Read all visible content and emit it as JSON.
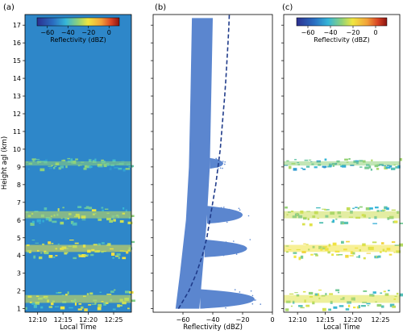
{
  "chart_data": [
    {
      "panel": "(a)",
      "type": "heatmap",
      "xlabel": "Local Time",
      "ylabel": "Height agl (km)",
      "x_ticks": [
        "12:10",
        "12:15",
        "12:20",
        "12:25"
      ],
      "x_tick_minutes": [
        10,
        15,
        20,
        25
      ],
      "x_range_minutes": [
        7.5,
        28.5
      ],
      "y_ticks": [
        1,
        2,
        3,
        4,
        5,
        6,
        7,
        8,
        9,
        10,
        11,
        12,
        13,
        14,
        15,
        16,
        17
      ],
      "ylim": [
        0.8,
        17.6
      ],
      "background_reflectivity_dBZ": -50,
      "colorbar": {
        "label": "Reflectivity (dBZ)",
        "ticks": [
          -60,
          -40,
          -20,
          0
        ],
        "range": [
          -70,
          10
        ]
      },
      "layers": [
        {
          "name": "",
          "bottom_km": 1.0,
          "top_km": 2.1,
          "reflectivity_dBZ": -30
        },
        {
          "name": "",
          "bottom_km": 3.9,
          "top_km": 4.9,
          "reflectivity_dBZ": -28
        },
        {
          "name": "",
          "bottom_km": 5.8,
          "top_km": 6.8,
          "reflectivity_dBZ": -32
        },
        {
          "name": "",
          "bottom_km": 8.9,
          "top_km": 9.5,
          "reflectivity_dBZ": -38
        }
      ]
    },
    {
      "panel": "(b)",
      "type": "scatter",
      "xlabel": "Reflectivity (dBZ)",
      "x_ticks": [
        -60,
        -40,
        -20,
        0
      ],
      "xlim": [
        -80,
        0
      ],
      "ylim": [
        0.8,
        17.6
      ],
      "noise_band": [
        {
          "height_km": 1.0,
          "min_dBZ": -65,
          "max_dBZ": -49
        },
        {
          "height_km": 3.0,
          "min_dBZ": -62,
          "max_dBZ": -47
        },
        {
          "height_km": 6.0,
          "min_dBZ": -58,
          "max_dBZ": -44
        },
        {
          "height_km": 9.0,
          "min_dBZ": -56,
          "max_dBZ": -42
        },
        {
          "height_km": 13.0,
          "min_dBZ": -55,
          "max_dBZ": -41
        },
        {
          "height_km": 17.4,
          "min_dBZ": -54,
          "max_dBZ": -40
        }
      ],
      "cloud_excursions": [
        {
          "bottom_km": 1.0,
          "top_km": 2.1,
          "max_dBZ": -12
        },
        {
          "bottom_km": 3.9,
          "top_km": 4.9,
          "max_dBZ": -17
        },
        {
          "bottom_km": 5.8,
          "top_km": 6.8,
          "max_dBZ": -20
        },
        {
          "bottom_km": 8.9,
          "top_km": 9.5,
          "max_dBZ": -33
        }
      ],
      "threshold_curve": {
        "style": "dashed",
        "color": "#1f3b8a",
        "points": [
          [
            -63,
            1.0
          ],
          [
            -56,
            2.0
          ],
          [
            -51,
            3.0
          ],
          [
            -47,
            4.0
          ],
          [
            -44,
            5.0
          ],
          [
            -42,
            6.0
          ],
          [
            -40,
            7.0
          ],
          [
            -38,
            8.0
          ],
          [
            -36.5,
            9.0
          ],
          [
            -35,
            10.0
          ],
          [
            -34,
            11.0
          ],
          [
            -33,
            12.0
          ],
          [
            -32,
            13.0
          ],
          [
            -31.2,
            14.0
          ],
          [
            -30.5,
            15.0
          ],
          [
            -29.8,
            16.0
          ],
          [
            -29.2,
            17.0
          ],
          [
            -28.9,
            17.6
          ]
        ]
      },
      "point_color": "#5b86cf"
    },
    {
      "panel": "(c)",
      "type": "heatmap",
      "xlabel": "Local Time",
      "x_ticks": [
        "12:10",
        "12:15",
        "12:20",
        "12:25"
      ],
      "x_tick_minutes": [
        10,
        15,
        20,
        25
      ],
      "x_range_minutes": [
        7.5,
        28.5
      ],
      "ylim": [
        0.8,
        17.6
      ],
      "colorbar": {
        "label": "Reflectivity (dBZ)",
        "ticks": [
          -60,
          -40,
          -20,
          0
        ],
        "range": [
          -70,
          10
        ]
      },
      "layers": [
        {
          "name": "",
          "bottom_km": 1.0,
          "top_km": 2.1,
          "reflectivity_dBZ": -30
        },
        {
          "name": "",
          "bottom_km": 3.9,
          "top_km": 4.9,
          "reflectivity_dBZ": -28
        },
        {
          "name": "",
          "bottom_km": 5.8,
          "top_km": 6.8,
          "reflectivity_dBZ": -32
        },
        {
          "name": "",
          "bottom_km": 8.9,
          "top_km": 9.5,
          "reflectivity_dBZ": -38
        }
      ]
    }
  ]
}
